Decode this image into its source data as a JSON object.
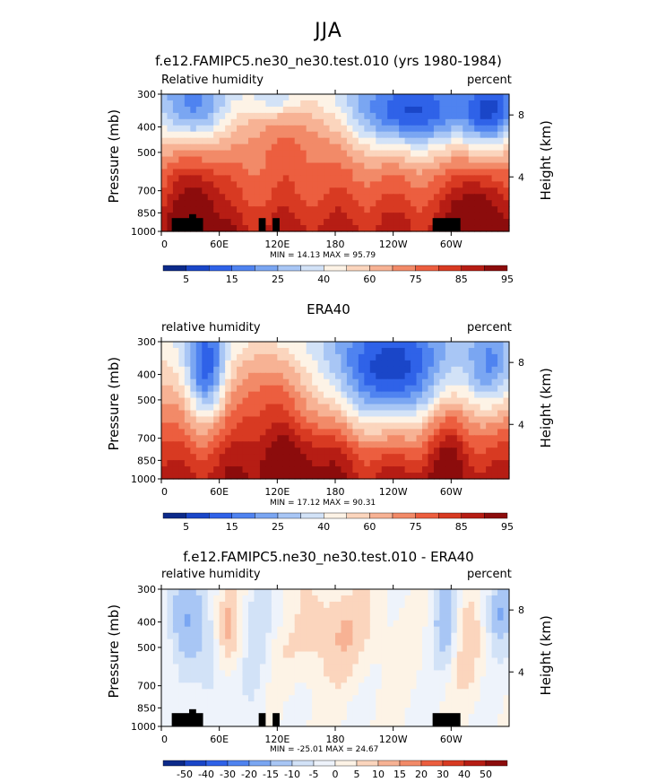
{
  "page": {
    "title": "JJA"
  },
  "panels": [
    {
      "title": "f.e12.FAMIPC5.ne30_ne30.test.010 (yrs 1980-1984)",
      "left_label": "Relative humidity",
      "right_label": "percent",
      "min_max": "MIN =   14.13   MAX =   95.79",
      "colorbar_labels": [
        "5",
        "15",
        "25",
        "40",
        "60",
        "75",
        "85",
        "95"
      ]
    },
    {
      "title": "ERA40",
      "left_label": "relative humidity",
      "right_label": "percent",
      "min_max": "MIN =   17.12   MAX =   90.31",
      "colorbar_labels": [
        "5",
        "15",
        "25",
        "40",
        "60",
        "75",
        "85",
        "95"
      ]
    },
    {
      "title": "f.e12.FAMIPC5.ne30_ne30.test.010 - ERA40",
      "left_label": "relative humidity",
      "right_label": "percent",
      "min_max": "MIN = -25.01   MAX =   24.67",
      "colorbar_labels": [
        "-50",
        "-40",
        "-30",
        "-20",
        "-15",
        "-10",
        "-5",
        "0",
        "5",
        "10",
        "15",
        "20",
        "30",
        "40",
        "50"
      ]
    }
  ],
  "chart_data": [
    {
      "type": "heatmap",
      "title": "f.e12.FAMIPC5.ne30_ne30.test.010 (yrs 1980-1984)",
      "xlabel": "",
      "ylabel": "Pressure (mb)",
      "y2label": "Height (km)",
      "x_ticks": [
        "0",
        "60E",
        "120E",
        "180",
        "120W",
        "60W"
      ],
      "y_ticks": [
        "300",
        "400",
        "500",
        "700",
        "850",
        "1000"
      ],
      "y2_ticks": [
        "8",
        "4"
      ],
      "colorbar_values": [
        5,
        15,
        25,
        40,
        60,
        75,
        85,
        95
      ],
      "min": 14.13,
      "max": 95.79
    },
    {
      "type": "heatmap",
      "title": "ERA40",
      "xlabel": "",
      "ylabel": "Pressure (mb)",
      "y2label": "Height (km)",
      "x_ticks": [
        "0",
        "60E",
        "120E",
        "180",
        "120W",
        "60W"
      ],
      "y_ticks": [
        "300",
        "400",
        "500",
        "700",
        "850",
        "1000"
      ],
      "y2_ticks": [
        "8",
        "4"
      ],
      "colorbar_values": [
        5,
        15,
        25,
        40,
        60,
        75,
        85,
        95
      ],
      "min": 17.12,
      "max": 90.31
    },
    {
      "type": "heatmap",
      "title": "f.e12.FAMIPC5.ne30_ne30.test.010 - ERA40",
      "xlabel": "",
      "ylabel": "Pressure (mb)",
      "y2label": "Height (km)",
      "x_ticks": [
        "0",
        "60E",
        "120E",
        "180",
        "120W",
        "60W"
      ],
      "y_ticks": [
        "300",
        "400",
        "500",
        "700",
        "850",
        "1000"
      ],
      "y2_ticks": [
        "8",
        "4"
      ],
      "colorbar_values": [
        -50,
        -40,
        -30,
        -20,
        -15,
        -10,
        -5,
        0,
        5,
        10,
        15,
        20,
        30,
        40,
        50
      ],
      "min": -25.01,
      "max": 24.67
    }
  ],
  "colors": {
    "rh_scale": [
      "#0c2a8a",
      "#1a46c8",
      "#2f62e8",
      "#4f83f0",
      "#7aa6f2",
      "#a8c6f5",
      "#d2e2f7",
      "#fdf3e6",
      "#fbd5bd",
      "#f7b294",
      "#f28a68",
      "#ec5e3f",
      "#d83a22",
      "#b61d14",
      "#8c0c0c"
    ],
    "diff_scale": [
      "#0c2a8a",
      "#1a46c8",
      "#2f62e8",
      "#4f83f0",
      "#7aa6f2",
      "#a8c6f5",
      "#d2e2f7",
      "#eef3fb",
      "#fdf3e6",
      "#fbd5bd",
      "#f7b294",
      "#f28a68",
      "#ec5e3f",
      "#d83a22",
      "#b61d14",
      "#8c0c0c"
    ],
    "topography": "#000000"
  }
}
